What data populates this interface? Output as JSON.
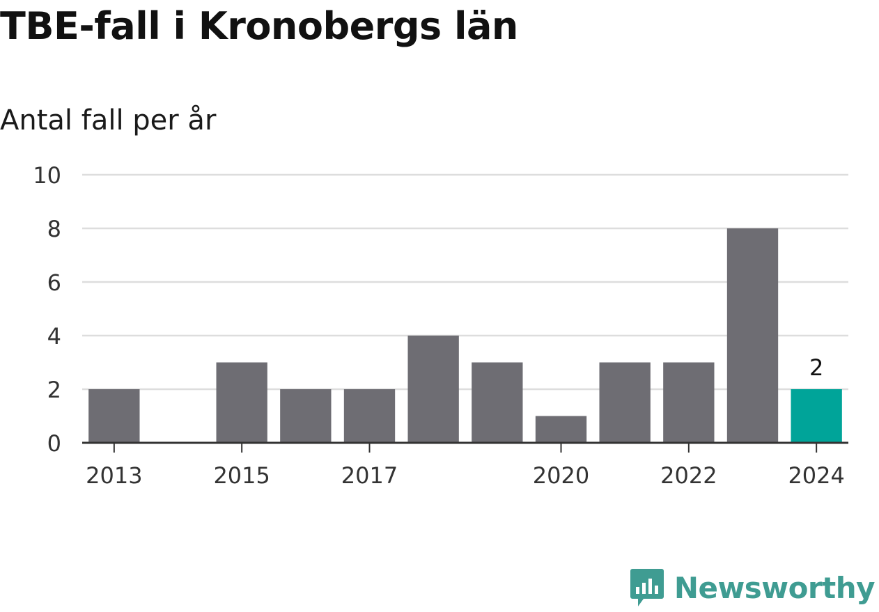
{
  "title": "TBE-fall i Kronobergs län",
  "subtitle": "Antal fall per år",
  "brand": {
    "name": "Newsworthy",
    "color": "#3f9c92",
    "icon": "newsworthy-chart-bubble-icon"
  },
  "colors": {
    "bar": "#6e6d73",
    "highlight": "#00a499",
    "grid": "#dddddd",
    "axis": "#333333"
  },
  "chart_data": {
    "type": "bar",
    "categories": [
      "2013",
      "2014",
      "2015",
      "2016",
      "2017",
      "2018",
      "2019",
      "2020",
      "2021",
      "2022",
      "2023",
      "2024"
    ],
    "values": [
      2,
      0,
      3,
      2,
      2,
      4,
      3,
      1,
      3,
      3,
      8,
      2
    ],
    "x_tick_labels": [
      "2013",
      "2015",
      "2017",
      "2020",
      "2022",
      "2024"
    ],
    "y_ticks": [
      0,
      2,
      4,
      6,
      8,
      10
    ],
    "ylim": [
      0,
      10
    ],
    "highlight_category": "2024",
    "data_labels": [
      {
        "category": "2024",
        "text": "2"
      }
    ],
    "grid": true,
    "legend": "none",
    "xlabel": "",
    "ylabel": ""
  }
}
